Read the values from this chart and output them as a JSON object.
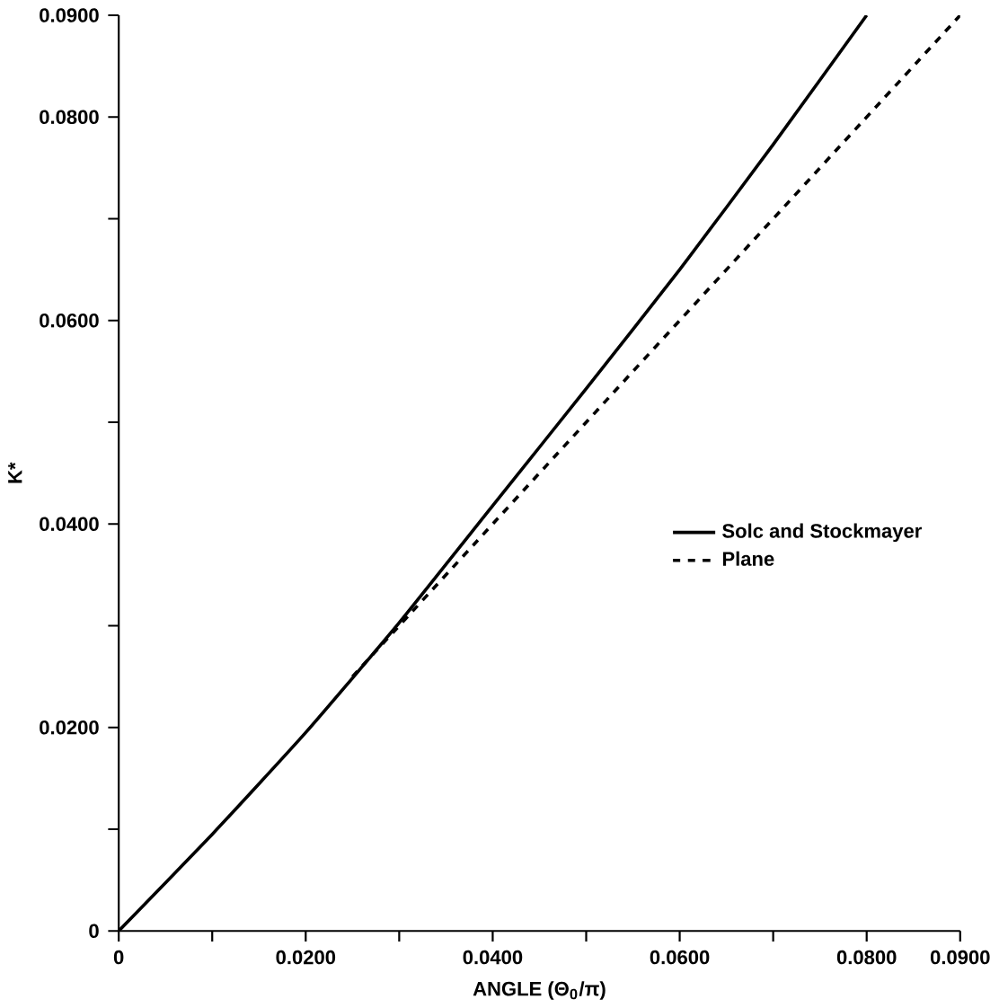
{
  "chart_data": {
    "type": "line",
    "xlabel": "ANGLE (Θ$_{0}$/π)",
    "ylabel": "K*",
    "xlim": [
      0,
      0.09
    ],
    "ylim": [
      0,
      0.09
    ],
    "xticks": [
      {
        "value": 0,
        "label": "0"
      },
      {
        "value": 0.01,
        "label": null
      },
      {
        "value": 0.02,
        "label": "0.0200"
      },
      {
        "value": 0.03,
        "label": null
      },
      {
        "value": 0.04,
        "label": "0.0400"
      },
      {
        "value": 0.05,
        "label": null
      },
      {
        "value": 0.06,
        "label": "0.0600"
      },
      {
        "value": 0.07,
        "label": null
      },
      {
        "value": 0.08,
        "label": "0.0800"
      },
      {
        "value": 0.09,
        "label": "0.0900"
      }
    ],
    "yticks": [
      {
        "value": 0,
        "label": "0"
      },
      {
        "value": 0.01,
        "label": null
      },
      {
        "value": 0.02,
        "label": "0.0200"
      },
      {
        "value": 0.03,
        "label": null
      },
      {
        "value": 0.04,
        "label": "0.0400"
      },
      {
        "value": 0.05,
        "label": null
      },
      {
        "value": 0.06,
        "label": "0.0600"
      },
      {
        "value": 0.07,
        "label": null
      },
      {
        "value": 0.08,
        "label": "0.0800"
      },
      {
        "value": 0.09,
        "label": "0.0900"
      }
    ],
    "legend": "right",
    "grid": false,
    "series": [
      {
        "name": "Solc and Stockmayer",
        "color": "#000000",
        "line_style": "solid",
        "x": [
          0,
          0.01,
          0.02,
          0.03,
          0.04,
          0.05,
          0.06,
          0.07,
          0.08
        ],
        "values": [
          0,
          0.0095,
          0.0195,
          0.0303,
          0.0418,
          0.0533,
          0.065,
          0.0773,
          0.09
        ]
      },
      {
        "name": "Plane",
        "color": "#000000",
        "line_style": "dashed",
        "x": [
          0.025,
          0.09
        ],
        "values": [
          0.025,
          0.09
        ]
      }
    ]
  }
}
